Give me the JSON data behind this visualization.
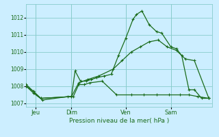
{
  "title": "",
  "xlabel": "Pression niveau de la mer( hPa )",
  "bg_color": "#cceeff",
  "grid_color": "#88cccc",
  "line_color": "#1a6b1a",
  "ylim": [
    1006.8,
    1012.8
  ],
  "yticks": [
    1007,
    1008,
    1009,
    1010,
    1011,
    1012
  ],
  "day_labels": [
    "Jeu",
    "Dim",
    "Ven",
    "Sam"
  ],
  "day_positions": [
    0.5,
    2.5,
    5.5,
    8.0
  ],
  "vline_positions": [
    0.5,
    2.5,
    5.5,
    8.0
  ],
  "xlim": [
    0.0,
    10.3
  ],
  "series1_x": [
    0.0,
    0.4,
    0.8,
    2.5,
    2.7,
    3.0,
    3.3,
    3.6,
    3.9,
    4.3,
    4.7,
    5.1,
    5.5,
    5.9,
    6.1,
    6.4,
    6.8,
    7.2,
    7.5,
    8.0,
    8.3,
    8.6,
    9.0,
    9.3,
    9.7,
    10.1
  ],
  "series1_y": [
    1008.1,
    1007.7,
    1007.3,
    1007.4,
    1008.9,
    1008.3,
    1008.3,
    1008.4,
    1008.5,
    1008.6,
    1008.7,
    1009.8,
    1010.8,
    1011.9,
    1012.2,
    1012.4,
    1011.6,
    1011.2,
    1011.1,
    1010.3,
    1010.2,
    1009.8,
    1007.8,
    1007.8,
    1007.3,
    1007.3
  ],
  "series2_x": [
    0.0,
    0.4,
    0.8,
    2.5,
    2.9,
    3.4,
    4.0,
    4.8,
    5.3,
    5.8,
    6.3,
    6.8,
    7.3,
    7.8,
    8.3,
    8.8,
    9.3,
    10.1
  ],
  "series2_y": [
    1008.0,
    1007.7,
    1007.3,
    1007.4,
    1008.2,
    1008.4,
    1008.6,
    1009.0,
    1009.5,
    1010.0,
    1010.3,
    1010.6,
    1010.7,
    1010.3,
    1010.1,
    1009.6,
    1009.5,
    1007.3
  ],
  "series3_x": [
    0.0,
    0.4,
    0.9,
    2.3,
    2.6,
    2.9,
    3.2,
    3.5,
    4.2,
    5.0,
    5.8,
    6.5,
    7.2,
    7.9,
    8.5,
    9.0,
    9.5,
    10.1
  ],
  "series3_y": [
    1008.0,
    1007.6,
    1007.2,
    1007.4,
    1007.4,
    1008.1,
    1008.1,
    1008.2,
    1008.3,
    1007.5,
    1007.5,
    1007.5,
    1007.5,
    1007.5,
    1007.5,
    1007.5,
    1007.4,
    1007.3
  ]
}
